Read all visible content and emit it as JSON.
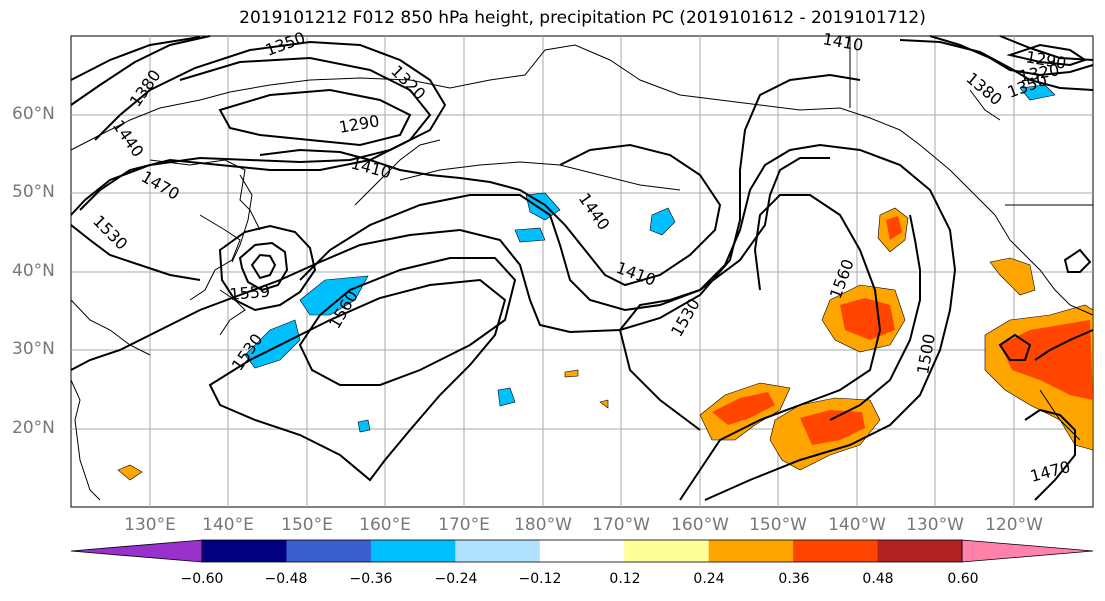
{
  "title": "2019101212 F012 850 hPa height, precipitation PC (2019101612 - 2019101712)",
  "lat_labels": [
    "60°N",
    "50°N",
    "40°N",
    "30°N",
    "20°N"
  ],
  "lon_labels": [
    "130°E",
    "140°E",
    "150°E",
    "160°E",
    "170°E",
    "180°W",
    "170°W",
    "160°W",
    "150°W",
    "140°W",
    "130°W",
    "120°W"
  ],
  "contour_labels": [
    "1350",
    "1380",
    "1320",
    "1440",
    "1290",
    "1410",
    "1470",
    "1530",
    "1440",
    "1410",
    "1560",
    "1530",
    "1560",
    "1530",
    "1500",
    "1470",
    "1290",
    "1320",
    "1350",
    "1380",
    "1410",
    "1559"
  ],
  "colorbar": {
    "ticks": [
      "−0.60",
      "−0.48",
      "−0.36",
      "−0.24",
      "−0.12",
      "0.12",
      "0.24",
      "0.36",
      "0.48",
      "0.60"
    ],
    "colors": [
      "#9932cc",
      "#000080",
      "#3a5fcd",
      "#00bfff",
      "#b0e2ff",
      "#ffffff",
      "#ffff99",
      "#ffa500",
      "#ff4500",
      "#b22222",
      "#ff82ab"
    ]
  },
  "colors": {
    "gridline": "#aaaaaa",
    "contour": "#000000",
    "coastline": "#000000",
    "axis_label": "#777777"
  }
}
